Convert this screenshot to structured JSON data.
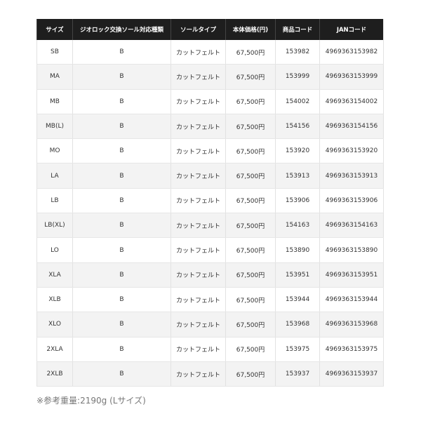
{
  "table": {
    "headers": [
      "サイズ",
      "ジオロック交換ソール対応種類",
      "ソールタイプ",
      "本体価格(円)",
      "商品コード",
      "JANコード"
    ],
    "rows": [
      [
        "SB",
        "B",
        "カットフェルト",
        "67,500円",
        "153982",
        "4969363153982"
      ],
      [
        "MA",
        "B",
        "カットフェルト",
        "67,500円",
        "153999",
        "4969363153999"
      ],
      [
        "MB",
        "B",
        "カットフェルト",
        "67,500円",
        "154002",
        "4969363154002"
      ],
      [
        "MB(L)",
        "B",
        "カットフェルト",
        "67,500円",
        "154156",
        "4969363154156"
      ],
      [
        "MO",
        "B",
        "カットフェルト",
        "67,500円",
        "153920",
        "4969363153920"
      ],
      [
        "LA",
        "B",
        "カットフェルト",
        "67,500円",
        "153913",
        "4969363153913"
      ],
      [
        "LB",
        "B",
        "カットフェルト",
        "67,500円",
        "153906",
        "4969363153906"
      ],
      [
        "LB(XL)",
        "B",
        "カットフェルト",
        "67,500円",
        "154163",
        "4969363154163"
      ],
      [
        "LO",
        "B",
        "カットフェルト",
        "67,500円",
        "153890",
        "4969363153890"
      ],
      [
        "XLA",
        "B",
        "カットフェルト",
        "67,500円",
        "153951",
        "4969363153951"
      ],
      [
        "XLB",
        "B",
        "カットフェルト",
        "67,500円",
        "153944",
        "4969363153944"
      ],
      [
        "XLO",
        "B",
        "カットフェルト",
        "67,500円",
        "153968",
        "4969363153968"
      ],
      [
        "2XLA",
        "B",
        "カットフェルト",
        "67,500円",
        "153975",
        "4969363153975"
      ],
      [
        "2XLB",
        "B",
        "カットフェルト",
        "67,500円",
        "153937",
        "4969363153937"
      ]
    ]
  },
  "footnote": "※参考重量:2190g (Lサイズ)"
}
